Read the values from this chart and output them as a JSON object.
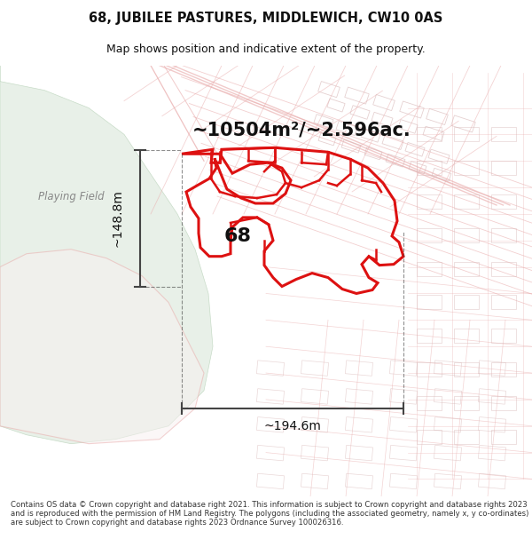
{
  "title": "68, JUBILEE PASTURES, MIDDLEWICH, CW10 0AS",
  "subtitle": "Map shows position and indicative extent of the property.",
  "area_text": "~10504m²/~2.596ac.",
  "label_68": "68",
  "dim_width": "~194.6m",
  "dim_height": "~148.8m",
  "playing_field_label": "Playing Field",
  "footer": "Contains OS data © Crown copyright and database right 2021. This information is subject to Crown copyright and database rights 2023 and is reproduced with the permission of HM Land Registry. The polygons (including the associated geometry, namely x, y co-ordinates) are subject to Crown copyright and database rights 2023 Ordnance Survey 100026316.",
  "map_bg": "#f7f7f5",
  "street_color": "#e8a8a8",
  "building_color": "#d8b8b8",
  "highlight_color": "#dd1111",
  "plot_fill": "none",
  "plot_stroke": "#dd1111",
  "green_area_color": "#e8f0e8",
  "green_border_color": "#c8dcc8",
  "title_color": "#111111",
  "footer_color": "#333333",
  "dim_color": "#444444"
}
